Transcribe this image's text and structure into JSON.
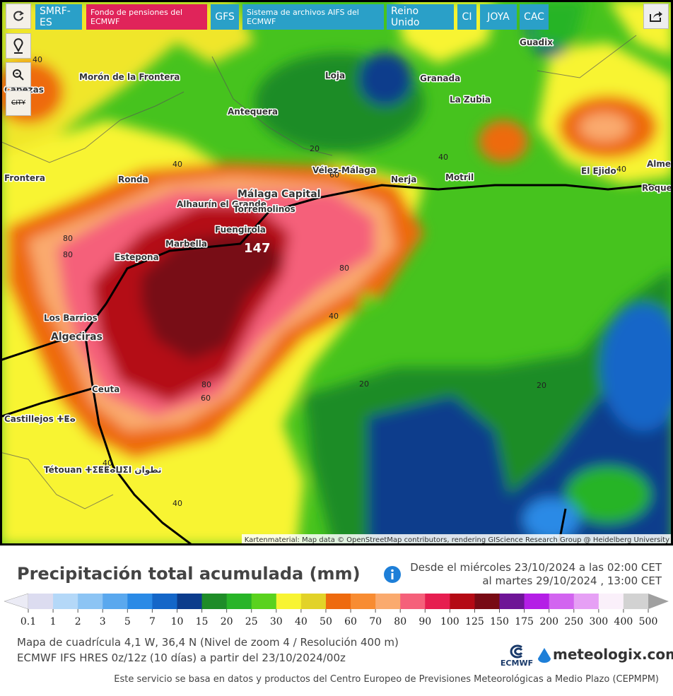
{
  "toolbar": {
    "buttons": [
      "SMRF- ES",
      "Fondo de pensiones del ECMWF",
      "GFS",
      "Sistema de archivos AIFS del ECMWF",
      "Reino Unido",
      "CI",
      "JOYA",
      "CAC"
    ],
    "city_icon": "CITY"
  },
  "map": {
    "places": [
      "Morón de la Frontera",
      "Antequera",
      "Loja",
      "Granada",
      "La Zubia",
      "Guadix",
      "Ronda",
      "Vélez-Málaga",
      "Nerja",
      "Motril",
      "El Ejido",
      "Alhaurín el Grande",
      "Málaga Capital",
      "Torremolinos",
      "Fuengirola",
      "Marbella",
      "Estepona",
      "Los Barrios",
      "Algeciras",
      "Ceuta",
      "Tétouan ⵜⵉⵟⵟⴰⵡⵉⵏ تطوان",
      "Roquetas de Mar",
      "Almería",
      "Frontera",
      "Cabezas",
      "Castillejos ⵜⵟⴰ"
    ],
    "contour_labels": [
      "40",
      "20",
      "60",
      "80"
    ],
    "max_value": "147",
    "attribution": "Kartenmaterial: Map data © OpenStreetMap contributors, rendering GIScience Research Group @ Heidelberg University"
  },
  "legend": {
    "title": "Precipitación total acumulada (mm)",
    "period_from": "Desde el miércoles 23/10/2024 a  las 02:00 CET",
    "period_to": "al martes 29/10/2024 , 13:00 CET",
    "scale_labels": [
      "0.1",
      "1",
      "2",
      "3",
      "5",
      "7",
      "10",
      "15",
      "20",
      "25",
      "30",
      "40",
      "50",
      "60",
      "70",
      "80",
      "90",
      "100",
      "125",
      "150",
      "175",
      "200",
      "250",
      "300",
      "400",
      "500"
    ],
    "scale_colors": [
      "#dcdcf0",
      "#b4d8f8",
      "#8cc4f4",
      "#5aa8ee",
      "#2a8ae6",
      "#1466c8",
      "#0c3c8c",
      "#1e8c28",
      "#28b428",
      "#5ad21e",
      "#f8f432",
      "#e2d228",
      "#ee6a0e",
      "#f88c32",
      "#faaa6e",
      "#f5607a",
      "#e61e50",
      "#b40a14",
      "#780a14",
      "#6e1496",
      "#b41ee6",
      "#d264f0",
      "#e6a0f5",
      "#faf0fa",
      "#d2d2d2"
    ],
    "grid_info": "Mapa de cuadrícula 4,1 W, 36,4 N (Nivel de zoom 4 / Resolución 400 m)",
    "model_info": "ECMWF IFS HRES 0z/12z (10 días) a partir del 23/10/2024/00z",
    "ecmwf_logo": "ECMWF",
    "brand": "meteologix.com",
    "footer": "Este servicio se basa en datos y productos del Centro Europeo de Previsiones Meteorológicas a Medio Plazo (CEPMPM)"
  }
}
